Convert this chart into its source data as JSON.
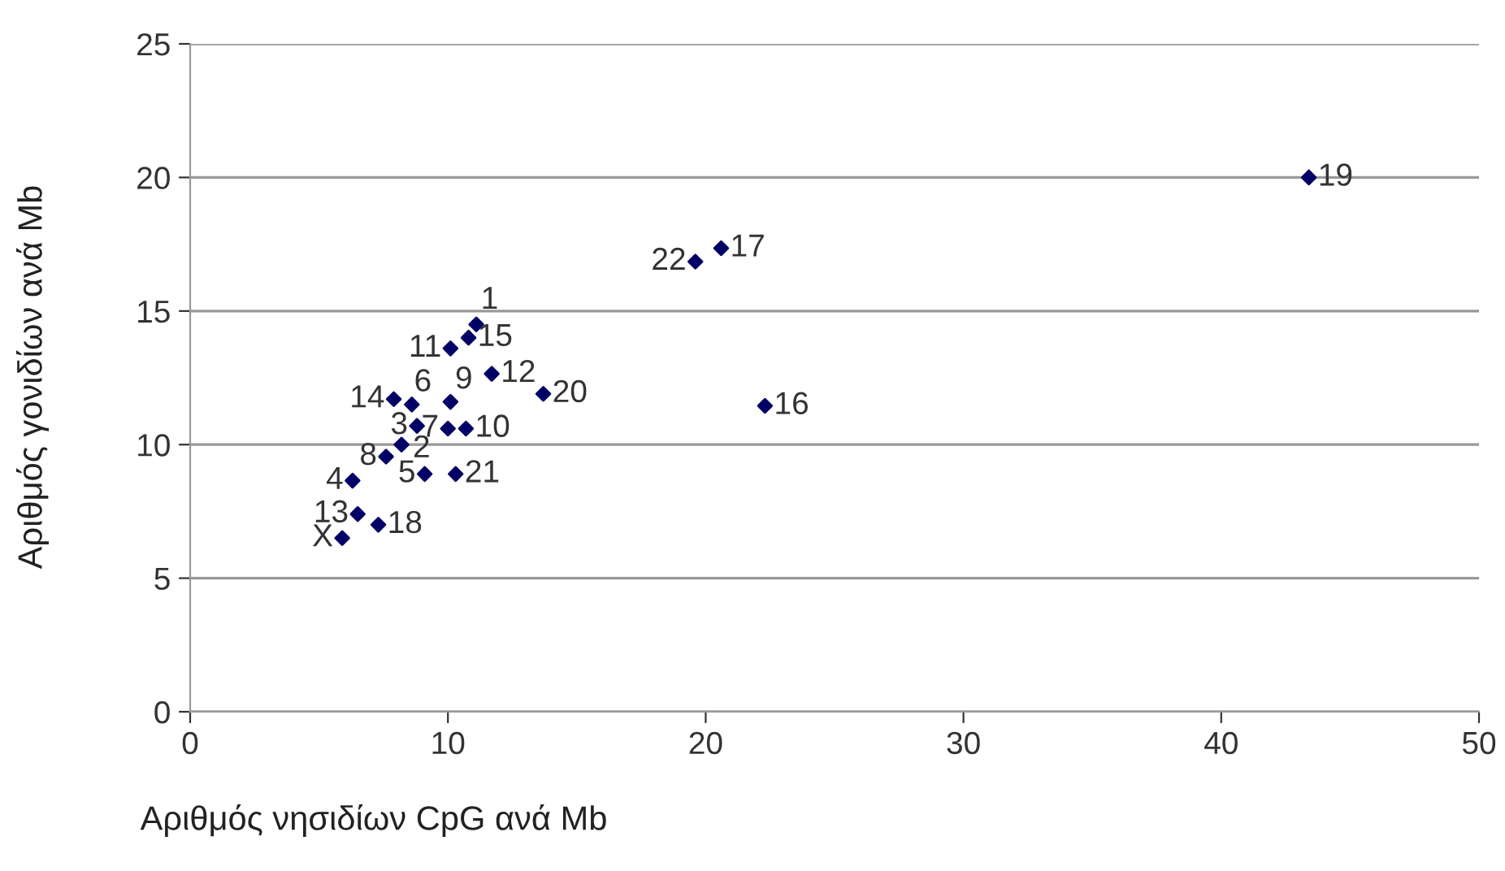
{
  "chart_data": {
    "type": "scatter",
    "xlabel": "Αριθμός νησιδίων CpG ανά Mb",
    "ylabel": "Αριθμός γονιδίων ανά Mb",
    "x": [
      11.1,
      8.2,
      8.8,
      6.3,
      9.1,
      8.6,
      10.0,
      7.6,
      10.1,
      10.7,
      10.1,
      11.7,
      6.5,
      7.9,
      10.8,
      22.3,
      20.6,
      7.3,
      43.4,
      13.7,
      10.3,
      19.6,
      5.9
    ],
    "series": [
      {
        "color": "#000066",
        "values": [
          14.5,
          10.0,
          10.7,
          8.65,
          8.9,
          11.5,
          10.6,
          9.55,
          11.6,
          10.6,
          13.6,
          12.65,
          7.4,
          11.7,
          14.0,
          11.45,
          17.35,
          7.0,
          20.0,
          11.9,
          8.9,
          16.85,
          6.5
        ]
      }
    ],
    "annotations": [
      {
        "text": "1",
        "x": 11.1,
        "y": 14.5
      },
      {
        "text": "2",
        "x": 8.2,
        "y": 10.0
      },
      {
        "text": "3",
        "x": 8.8,
        "y": 10.7
      },
      {
        "text": "4",
        "x": 6.3,
        "y": 8.65
      },
      {
        "text": "5",
        "x": 9.1,
        "y": 8.9
      },
      {
        "text": "6",
        "x": 8.6,
        "y": 11.5
      },
      {
        "text": "7",
        "x": 10.0,
        "y": 10.6
      },
      {
        "text": "8",
        "x": 7.6,
        "y": 9.55
      },
      {
        "text": "9",
        "x": 10.1,
        "y": 11.6
      },
      {
        "text": "10",
        "x": 10.7,
        "y": 10.6
      },
      {
        "text": "11",
        "x": 10.1,
        "y": 13.6
      },
      {
        "text": "12",
        "x": 11.7,
        "y": 12.65
      },
      {
        "text": "13",
        "x": 6.5,
        "y": 7.4
      },
      {
        "text": "14",
        "x": 7.9,
        "y": 11.7
      },
      {
        "text": "15",
        "x": 10.8,
        "y": 14.0
      },
      {
        "text": "16",
        "x": 22.3,
        "y": 11.45
      },
      {
        "text": "17",
        "x": 20.6,
        "y": 17.35
      },
      {
        "text": "18",
        "x": 7.3,
        "y": 7.0
      },
      {
        "text": "19",
        "x": 43.4,
        "y": 20.0
      },
      {
        "text": "20",
        "x": 13.7,
        "y": 11.9
      },
      {
        "text": "21",
        "x": 10.3,
        "y": 8.9
      },
      {
        "text": "22",
        "x": 19.6,
        "y": 16.85
      },
      {
        "text": "X",
        "x": 5.9,
        "y": 6.5
      }
    ],
    "xlim": [
      0,
      50
    ],
    "xticks": [
      0,
      10,
      20,
      30,
      40,
      50
    ],
    "ylim": [
      0,
      25
    ],
    "yticks": [
      0,
      5,
      10,
      15,
      20,
      25
    ],
    "grid": "y",
    "marker": "diamond",
    "legend": false
  }
}
